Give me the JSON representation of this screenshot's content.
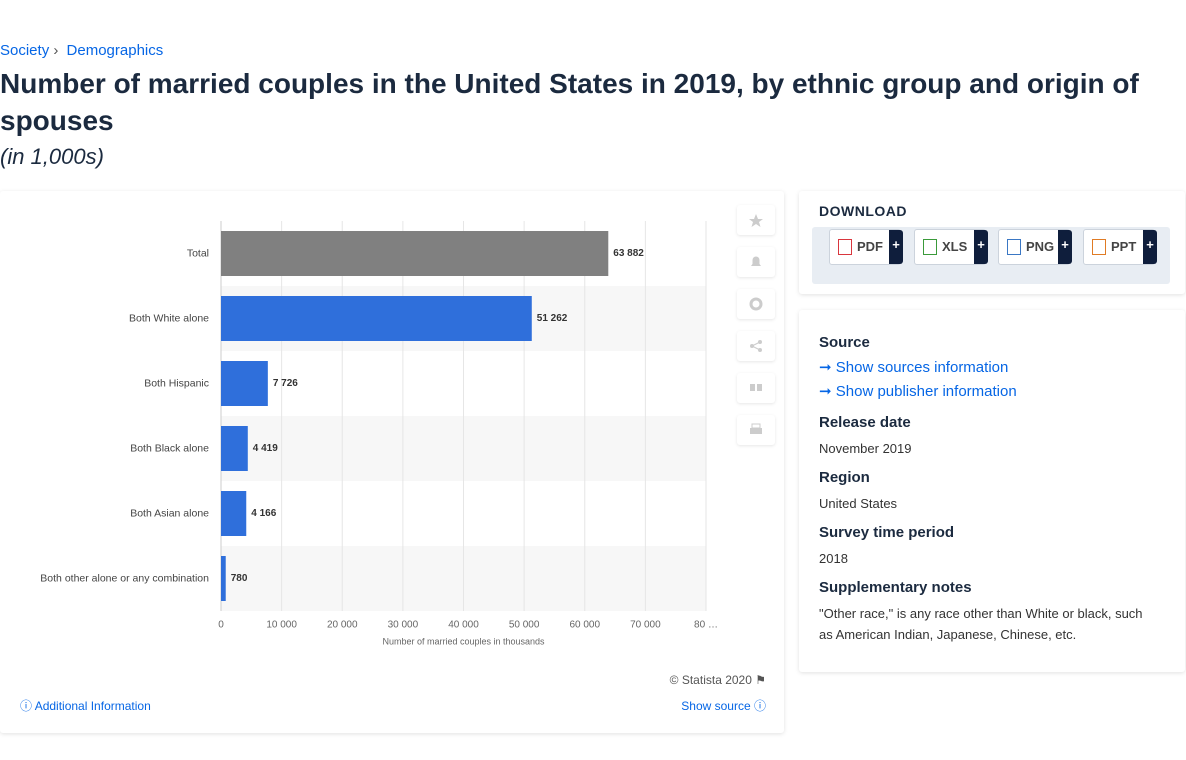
{
  "breadcrumb": [
    "Society",
    "Demographics"
  ],
  "title": "Number of married couples in the United States in 2019, by ethnic group and origin of spouses",
  "subtitle": "(in 1,000s)",
  "chart_data": {
    "type": "bar",
    "orientation": "horizontal",
    "categories": [
      "Total",
      "Both White alone",
      "Both Hispanic",
      "Both Black alone",
      "Both Asian alone",
      "Both other alone or any combination"
    ],
    "values": [
      63882,
      51262,
      7726,
      4419,
      4166,
      780
    ],
    "value_labels": [
      "63 882",
      "51 262",
      "7 726",
      "4 419",
      "4 166",
      "780"
    ],
    "colors": [
      "#808080",
      "#2f6fdb",
      "#2f6fdb",
      "#2f6fdb",
      "#2f6fdb",
      "#2f6fdb"
    ],
    "xlim": [
      0,
      80000
    ],
    "xticks": [
      0,
      {
        "value": 10000,
        "label": "10 000"
      },
      {
        "value": 20000,
        "label": "20 000"
      },
      {
        "value": 30000,
        "label": "30 000"
      },
      {
        "value": 40000,
        "label": "40 000"
      },
      {
        "value": 50000,
        "label": "50 000"
      },
      {
        "value": 60000,
        "label": "60 000"
      },
      {
        "value": 70000,
        "label": "70 000"
      },
      {
        "value": 80000,
        "label": "80 …"
      }
    ],
    "xlabel": "Number of married couples in thousands",
    "grid": true
  },
  "credit": "© Statista 2020",
  "additional_info": "Additional Information",
  "show_source": "Show source",
  "download": {
    "heading": "DOWNLOAD",
    "buttons": [
      "PDF",
      "XLS",
      "PNG",
      "PPT"
    ],
    "plus": "+"
  },
  "details": {
    "source_heading": "Source",
    "links": [
      "Show sources information",
      "Show publisher information"
    ],
    "items": [
      {
        "label": "Release date",
        "value": "November 2019"
      },
      {
        "label": "Region",
        "value": "United States"
      },
      {
        "label": "Survey time period",
        "value": "2018"
      },
      {
        "label": "Supplementary notes",
        "value": "\"Other race,\" is any race other than White or black, such as American Indian, Japanese, Chinese, etc."
      }
    ]
  }
}
